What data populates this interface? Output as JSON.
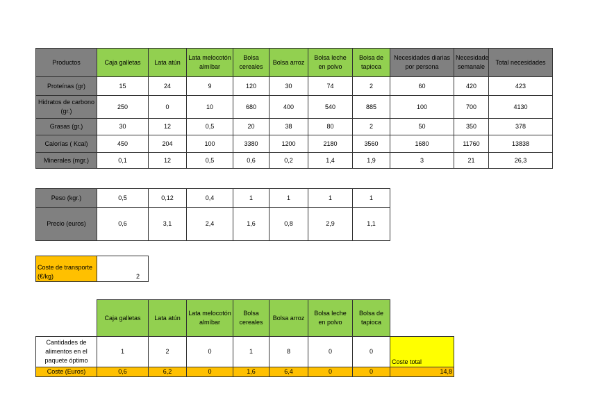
{
  "products": [
    "Caja galletas",
    "Lata atún",
    "Lata melocotón almíbar",
    "Bolsa cereales",
    "Bolsa arroz",
    "Bolsa leche en polvo",
    "Bolsa de tapioca"
  ],
  "nutrition": {
    "header": "Productos",
    "extra_headers": [
      "Necesidades diarias por persona",
      "Necesidades semanale",
      "Total necesidades"
    ],
    "rows": [
      {
        "label": "Proteínas (gr)",
        "values": [
          "15",
          "24",
          "9",
          "120",
          "30",
          "74",
          "2",
          "60",
          "420",
          "423"
        ]
      },
      {
        "label": "Hidratos de carbono (gr.)",
        "values": [
          "250",
          "0",
          "10",
          "680",
          "400",
          "540",
          "885",
          "100",
          "700",
          "4130"
        ]
      },
      {
        "label": "Grasas (gr.)",
        "values": [
          "30",
          "12",
          "0,5",
          "20",
          "38",
          "80",
          "2",
          "50",
          "350",
          "378"
        ]
      },
      {
        "label": "Calorías ( Kcal)",
        "values": [
          "450",
          "204",
          "100",
          "3380",
          "1200",
          "2180",
          "3560",
          "1680",
          "11760",
          "13838"
        ]
      },
      {
        "label": "Minerales (mgr.)",
        "values": [
          "0,1",
          "12",
          "0,5",
          "0,6",
          "0,2",
          "1,4",
          "1,9",
          "3",
          "21",
          "26,3"
        ]
      }
    ]
  },
  "weights": {
    "rows": [
      {
        "label": "Peso (kgr.)",
        "values": [
          "0,5",
          "0,12",
          "0,4",
          "1",
          "1",
          "1",
          "1"
        ]
      },
      {
        "label": "Precio (euros)",
        "values": [
          "0,6",
          "3,1",
          "2,4",
          "1,6",
          "0,8",
          "2,9",
          "1,1"
        ]
      }
    ]
  },
  "transport": {
    "label": "Coste de transporte (€/kg)",
    "value": "2"
  },
  "solution": {
    "quantities_label": "Cantidades de alimentos en el paquete óptimo",
    "quantities": [
      "1",
      "2",
      "0",
      "1",
      "8",
      "0",
      "0"
    ],
    "total_label": "Coste total",
    "cost_label": "Coste (Euros)",
    "costs": [
      "0,6",
      "6,2",
      "0",
      "1,6",
      "6,4",
      "0",
      "0"
    ],
    "total": "14,8"
  },
  "colors": {
    "header_gray": "#808080",
    "product_green": "#92D050",
    "cost_orange": "#FFC000",
    "total_yellow": "#FFFF00"
  }
}
